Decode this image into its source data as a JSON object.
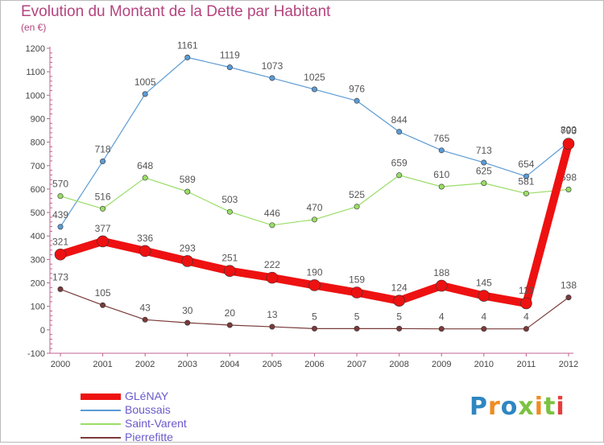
{
  "title": "Evolution du Montant de la Dette par Habitant",
  "subtitle": "(en €)",
  "brand": {
    "text": "Proxiti",
    "colors": [
      "#2e86c1",
      "#ef8c21",
      "#2e86c1",
      "#7cc242",
      "#ef8c21",
      "#7cc242",
      "#e73c3c"
    ]
  },
  "chart_data": {
    "type": "line",
    "x": [
      "2000",
      "2001",
      "2002",
      "2003",
      "2004",
      "2005",
      "2006",
      "2007",
      "2008",
      "2009",
      "2010",
      "2011",
      "2012"
    ],
    "ylim": [
      -100,
      1200
    ],
    "yticks": [
      -100,
      0,
      100,
      200,
      300,
      400,
      500,
      600,
      700,
      800,
      900,
      1000,
      1100,
      1200
    ],
    "grid": false,
    "legend_position": "bottom-left",
    "series": [
      {
        "name": "Boussais",
        "color": "#5b9bd5",
        "values": [
          439,
          718,
          1005,
          1161,
          1119,
          1073,
          1025,
          976,
          844,
          765,
          713,
          654,
          800
        ],
        "labels": [
          "439",
          "718",
          "1005",
          "1161",
          "1119",
          "1073",
          "1025",
          "976",
          "844",
          "765",
          "713",
          "654",
          "800"
        ]
      },
      {
        "name": "Saint-Varent",
        "color": "#99dd66",
        "values": [
          570,
          516,
          648,
          589,
          503,
          446,
          470,
          525,
          659,
          610,
          625,
          581,
          598
        ],
        "labels": [
          "570",
          "516",
          "648",
          "589",
          "503",
          "446",
          "470",
          "525",
          "659",
          "610",
          "625",
          "581",
          "598"
        ]
      },
      {
        "name": "GLéNAY",
        "color": "#ee1111",
        "values": [
          321,
          377,
          336,
          293,
          251,
          222,
          190,
          159,
          124,
          188,
          145,
          113,
          793
        ],
        "labels": [
          "321",
          "377",
          "336",
          "293",
          "251",
          "222",
          "190",
          "159",
          "124",
          "188",
          "145",
          "113",
          "793"
        ]
      },
      {
        "name": "Pierrefitte",
        "color": "#7a3a3a",
        "values": [
          173,
          105,
          43,
          30,
          20,
          13,
          5,
          5,
          5,
          4,
          4,
          4,
          138
        ],
        "labels": [
          "173",
          "105",
          "43",
          "30",
          "20",
          "13",
          "5",
          "5",
          "5",
          "4",
          "4",
          "4",
          "138"
        ]
      }
    ],
    "legend_order": [
      "GLéNAY",
      "Boussais",
      "Saint-Varent",
      "Pierrefitte"
    ]
  }
}
